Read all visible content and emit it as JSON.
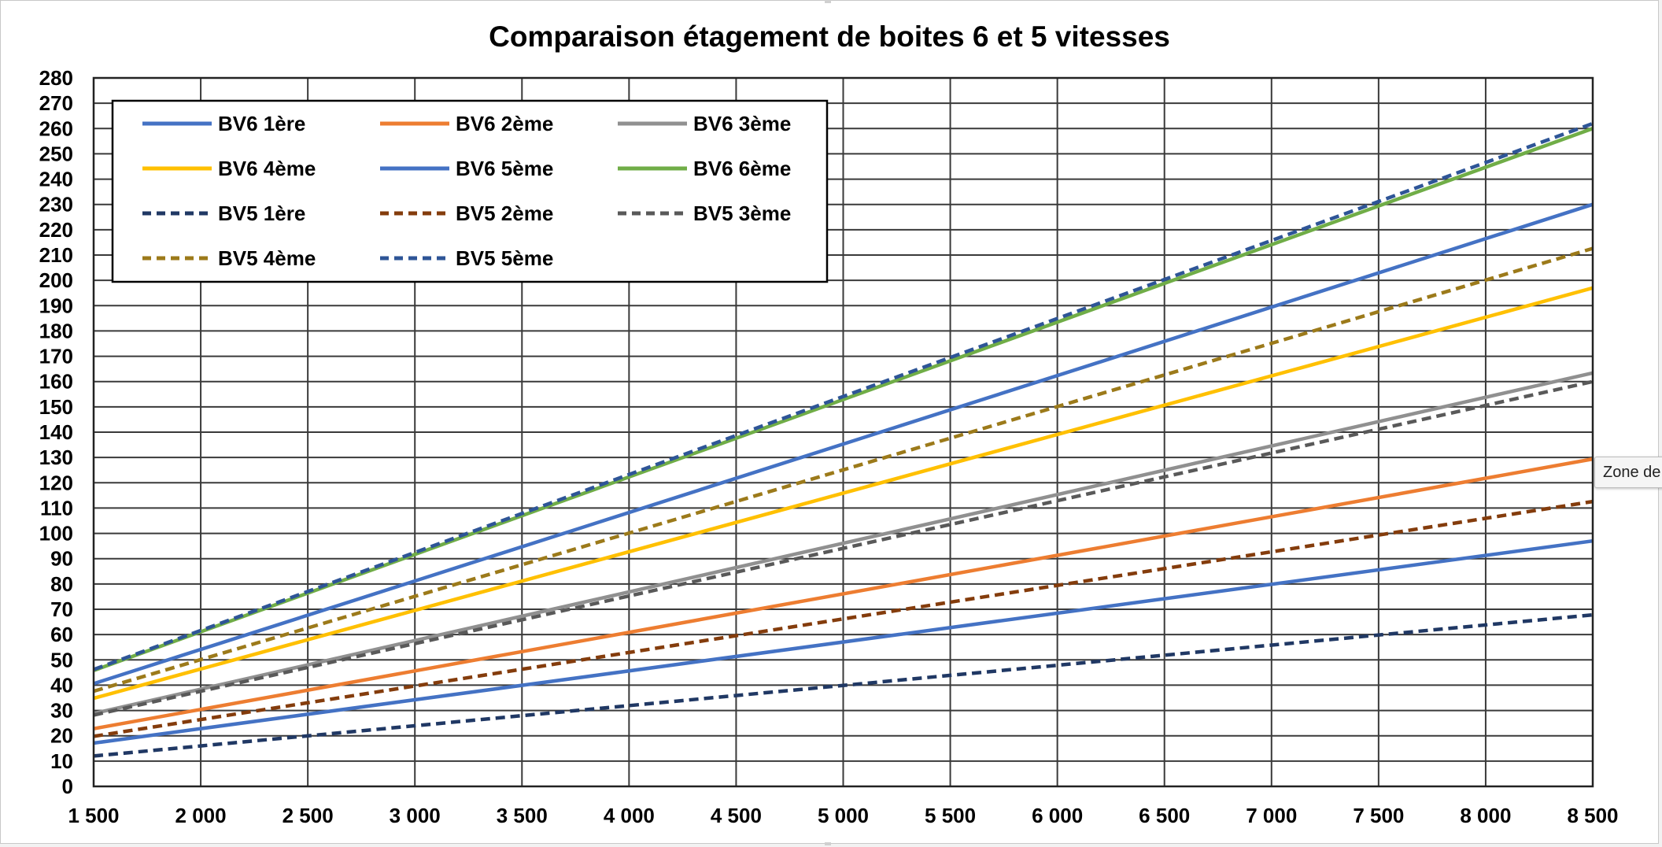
{
  "chart_data": {
    "type": "line",
    "title": "Comparaison étagement de boites 6 et 5 vitesses",
    "xlabel": "",
    "ylabel": "",
    "xlim": [
      1500,
      8500
    ],
    "ylim": [
      0,
      280
    ],
    "x_ticks": [
      1500,
      2000,
      2500,
      3000,
      3500,
      4000,
      4500,
      5000,
      5500,
      6000,
      6500,
      7000,
      7500,
      8000,
      8500
    ],
    "x_tick_labels": [
      "1 500",
      "2 000",
      "2 500",
      "3 000",
      "3 500",
      "4 000",
      "4 500",
      "5 000",
      "5 500",
      "6 000",
      "6 500",
      "7 000",
      "7 500",
      "8 000",
      "8 500"
    ],
    "y_ticks": [
      0,
      10,
      20,
      30,
      40,
      50,
      60,
      70,
      80,
      90,
      100,
      110,
      120,
      130,
      140,
      150,
      160,
      170,
      180,
      190,
      200,
      210,
      220,
      230,
      240,
      250,
      260,
      270,
      280
    ],
    "grid": true,
    "legend_position": "top-left",
    "series": [
      {
        "name": "BV6 1ère",
        "color": "#4472c4",
        "dash": "solid",
        "x": [
          1500,
          8500
        ],
        "y": [
          17.1,
          97.0
        ]
      },
      {
        "name": "BV6 2ème",
        "color": "#ed7d31",
        "dash": "solid",
        "x": [
          1500,
          8500
        ],
        "y": [
          22.8,
          129.4
        ]
      },
      {
        "name": "BV6 3ème",
        "color": "#909090",
        "dash": "solid",
        "x": [
          1500,
          8500
        ],
        "y": [
          28.8,
          163.4
        ]
      },
      {
        "name": "BV6 4ème",
        "color": "#ffc000",
        "dash": "solid",
        "x": [
          1500,
          8500
        ],
        "y": [
          34.8,
          197.0
        ]
      },
      {
        "name": "BV6 5ème",
        "color": "#4472c4",
        "dash": "solid",
        "x": [
          1500,
          8500
        ],
        "y": [
          40.6,
          230.0
        ]
      },
      {
        "name": "BV6 6ème",
        "color": "#70ad47",
        "dash": "solid",
        "x": [
          1500,
          8500
        ],
        "y": [
          45.8,
          260.0
        ]
      },
      {
        "name": "BV5 1ère",
        "color": "#203864",
        "dash": "dashed",
        "x": [
          1500,
          8500
        ],
        "y": [
          12.0,
          67.8
        ]
      },
      {
        "name": "BV5 2ème",
        "color": "#843c0c",
        "dash": "dashed",
        "x": [
          1500,
          8500
        ],
        "y": [
          19.8,
          112.6
        ]
      },
      {
        "name": "BV5 3ème",
        "color": "#595959",
        "dash": "dashed",
        "x": [
          1500,
          8500
        ],
        "y": [
          28.2,
          160.0
        ]
      },
      {
        "name": "BV5 4ème",
        "color": "#9c7a1a",
        "dash": "dashed",
        "x": [
          1500,
          8500
        ],
        "y": [
          37.6,
          212.6
        ]
      },
      {
        "name": "BV5 5ème",
        "color": "#2e5597",
        "dash": "dashed",
        "x": [
          1500,
          8500
        ],
        "y": [
          46.2,
          262.0
        ]
      }
    ]
  },
  "tooltip": {
    "text": "Zone de"
  }
}
